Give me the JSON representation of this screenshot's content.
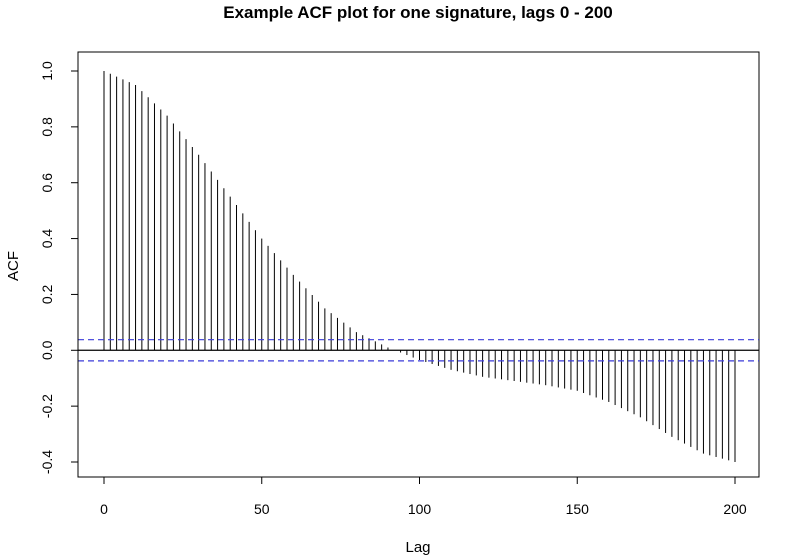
{
  "chart_data": {
    "type": "bar",
    "title": "Example ACF plot for one signature, lags 0 - 200",
    "xlabel": "Lag",
    "ylabel": "ACF",
    "xlim": [
      0,
      200
    ],
    "ylim": [
      -0.4,
      1.0
    ],
    "x_ticks": [
      0,
      50,
      100,
      150,
      200
    ],
    "y_ticks": [
      -0.4,
      -0.2,
      0.0,
      0.2,
      0.4,
      0.6,
      0.8,
      1.0
    ],
    "x_tick_labels": [
      "0",
      "50",
      "100",
      "150",
      "200"
    ],
    "y_tick_labels": [
      "-0.4",
      "-0.2",
      "0.0",
      "0.2",
      "0.4",
      "0.6",
      "0.8",
      "1.0"
    ],
    "lag_step": 2,
    "acf_anchors": {
      "lag": [
        0,
        10,
        20,
        30,
        40,
        50,
        60,
        70,
        80,
        90,
        100,
        110,
        120,
        130,
        140,
        150,
        160,
        170,
        180,
        190,
        200
      ],
      "acf": [
        1.0,
        0.95,
        0.84,
        0.7,
        0.55,
        0.4,
        0.27,
        0.15,
        0.065,
        0.01,
        -0.035,
        -0.07,
        -0.095,
        -0.11,
        -0.125,
        -0.145,
        -0.185,
        -0.24,
        -0.31,
        -0.37,
        -0.4
      ]
    },
    "confidence_band": {
      "upper": 0.038,
      "lower": -0.038,
      "color": "#3b3bd9",
      "style": "dashed"
    },
    "bar_color": "#000000",
    "grid": false
  }
}
